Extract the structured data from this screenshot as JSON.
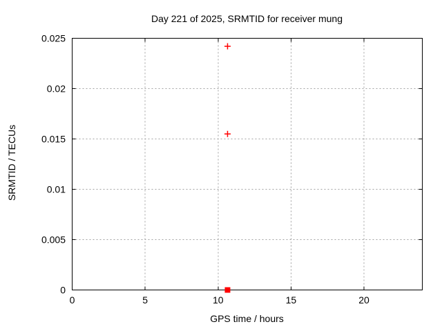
{
  "chart": {
    "title": "Day 221 of 2025, SRMTID for receiver mung",
    "xlabel": "GPS time / hours",
    "ylabel": "SRMTID / TECUs"
  },
  "colors": {
    "background": "#ffffff",
    "axis": "#000000",
    "grid": "#a0a0a0",
    "marker": "#ff0000"
  },
  "chart_data": {
    "type": "scatter",
    "title": "Day 221 of 2025, SRMTID for receiver mung",
    "xlabel": "GPS time / hours",
    "ylabel": "SRMTID / TECUs",
    "xlim": [
      0,
      24
    ],
    "ylim": [
      0,
      0.025
    ],
    "xticks": {
      "values": [
        0,
        5,
        10,
        15,
        20
      ],
      "labels": [
        "0",
        "5",
        "10",
        "15",
        "20"
      ]
    },
    "yticks": {
      "values": [
        0,
        0.005,
        0.01,
        0.015,
        0.02,
        0.025
      ],
      "labels": [
        "0",
        "0.005",
        "0.01",
        "0.015",
        "0.02",
        "0.025"
      ]
    },
    "grid": true,
    "grid_style": "dashed",
    "legend": "none",
    "series": [
      {
        "name": "srmtid-plus-points",
        "marker": "plus",
        "color": "#ff0000",
        "points": [
          [
            10.65,
            0.0242
          ],
          [
            10.65,
            0.0155
          ]
        ]
      },
      {
        "name": "srmtid-square-points",
        "marker": "filled-square",
        "color": "#ff0000",
        "points": [
          [
            10.65,
            0.0
          ]
        ]
      }
    ]
  }
}
